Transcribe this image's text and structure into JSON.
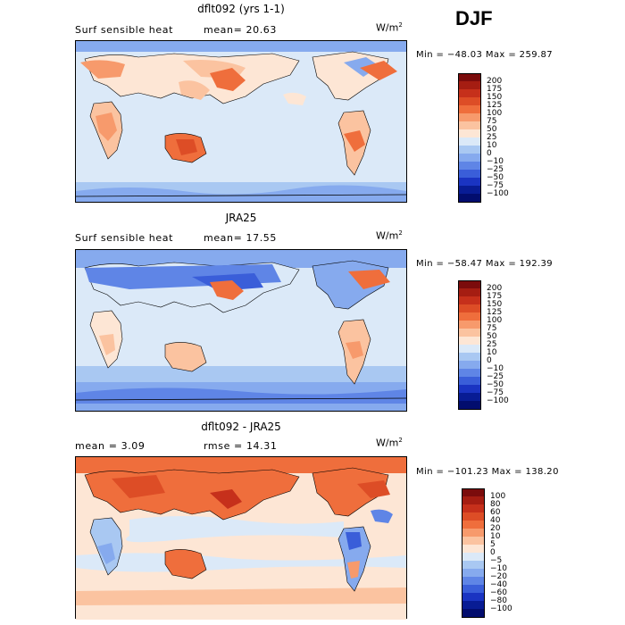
{
  "season": "DJF",
  "units": "W/m",
  "units_exp": "2",
  "levels_abs": [
    "200",
    "175",
    "150",
    "125",
    "100",
    "75",
    "50",
    "25",
    "10",
    "0",
    "−10",
    "−25",
    "−50",
    "−75",
    "−100"
  ],
  "levels_diff": [
    "100",
    "80",
    "60",
    "40",
    "20",
    "10",
    "5",
    "0",
    "−5",
    "−10",
    "−20",
    "−40",
    "−60",
    "−80",
    "−100"
  ],
  "colors_abs": [
    "#7b0c0c",
    "#a51d12",
    "#c6301b",
    "#dd4d26",
    "#ef6e3c",
    "#f79a6c",
    "#fbc3a0",
    "#fde6d5",
    "#dbe9f8",
    "#a9c8f2",
    "#86aaee",
    "#5f85e6",
    "#3a5ed9",
    "#1a34c2",
    "#081c94",
    "#020d6e"
  ],
  "colors_diff": [
    "#7b0c0c",
    "#a51d12",
    "#c6301b",
    "#dd4d26",
    "#ef6e3c",
    "#f79a6c",
    "#fbc3a0",
    "#fde6d5",
    "#dbe9f8",
    "#a9c8f2",
    "#86aaee",
    "#5f85e6",
    "#3a5ed9",
    "#1a34c2",
    "#081c94",
    "#020d6e"
  ],
  "panels": [
    {
      "title": "dflt092 (yrs 1-1)",
      "label_left": "Surf sensible heat",
      "label_mid": "mean=  20.63",
      "minmax": "Min = −48.03 Max = 259.87"
    },
    {
      "title": "JRA25",
      "label_left": "Surf sensible heat",
      "label_mid": "mean=  17.55",
      "minmax": "Min = −58.47 Max = 192.39"
    },
    {
      "title": "dflt092 - JRA25",
      "label_left": "mean =    3.09",
      "label_mid": "rmse =   14.31",
      "minmax": "Min = −101.23 Max = 138.20"
    }
  ],
  "chart_data": [
    {
      "type": "heatmap",
      "title": "dflt092 (yrs 1-1)",
      "variable": "Surf sensible heat",
      "units": "W/m2",
      "mean": 20.63,
      "min": -48.03,
      "max": 259.87,
      "contour_levels": [
        -100,
        -75,
        -50,
        -25,
        -10,
        0,
        10,
        25,
        50,
        75,
        100,
        125,
        150,
        175,
        200
      ]
    },
    {
      "type": "heatmap",
      "title": "JRA25",
      "variable": "Surf sensible heat",
      "units": "W/m2",
      "mean": 17.55,
      "min": -58.47,
      "max": 192.39,
      "contour_levels": [
        -100,
        -75,
        -50,
        -25,
        -10,
        0,
        10,
        25,
        50,
        75,
        100,
        125,
        150,
        175,
        200
      ]
    },
    {
      "type": "heatmap",
      "title": "dflt092 - JRA25",
      "units": "W/m2",
      "mean": 3.09,
      "rmse": 14.31,
      "min": -101.23,
      "max": 138.2,
      "contour_levels": [
        -100,
        -80,
        -60,
        -40,
        -20,
        -10,
        -5,
        0,
        5,
        10,
        20,
        40,
        60,
        80,
        100
      ]
    }
  ]
}
